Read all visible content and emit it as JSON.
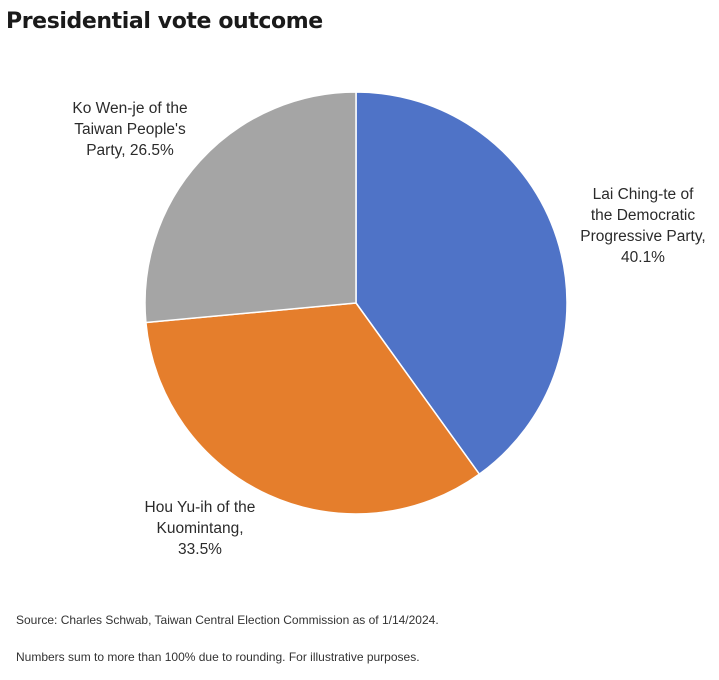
{
  "chart_data": {
    "type": "pie",
    "title": "Presidential vote outcome",
    "slices": [
      {
        "name": "Lai Ching-te of the Democratic Progressive Party",
        "value": 40.1,
        "label_lines": [
          "Lai Ching-te of",
          "the Democratic",
          "Progressive Party,",
          "40.1%"
        ],
        "color": "#4f73c7"
      },
      {
        "name": "Hou Yu-ih of the Kuomintang",
        "value": 33.5,
        "label_lines": [
          "Hou Yu-ih of the",
          "Kuomintang,",
          "33.5%"
        ],
        "color": "#e57e2c"
      },
      {
        "name": "Ko Wen-je of the Taiwan People's Party",
        "value": 26.5,
        "label_lines": [
          "Ko Wen-je of the",
          "Taiwan People's",
          "Party, 26.5%"
        ],
        "color": "#a5a5a5"
      }
    ],
    "start": "12 o'clock",
    "direction": "clockwise",
    "legend": "none"
  },
  "footnotes": {
    "source": "Source: Charles Schwab, Taiwan Central Election Commission as of 1/14/2024.",
    "note": "Numbers sum to more than 100% due to rounding. For illustrative purposes."
  }
}
